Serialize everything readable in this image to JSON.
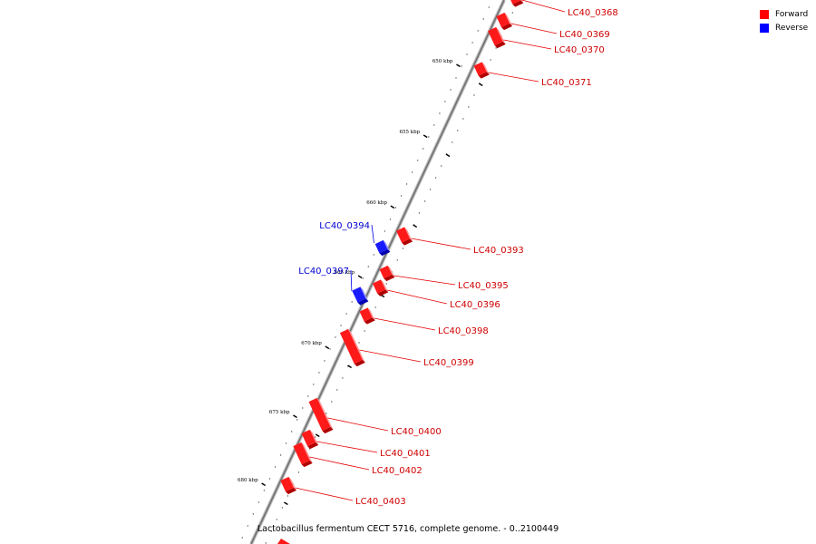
{
  "legend": {
    "forward_label": "Forward",
    "reverse_label": "Reverse",
    "forward_color": "#ff0000",
    "reverse_color": "#0000ff"
  },
  "caption": "Lactobacillus fermentum CECT 5716, complete genome. - 0..2100449",
  "ticks": [
    {
      "label": "650 kbp"
    },
    {
      "label": "655 kbp"
    },
    {
      "label": "660 kbp"
    },
    {
      "label": "665 kbp"
    },
    {
      "label": "670 kbp"
    },
    {
      "label": "675 kbp"
    },
    {
      "label": "680 kbp"
    }
  ],
  "genes": [
    {
      "name": "LC40_0368",
      "strand": "forward"
    },
    {
      "name": "LC40_0369",
      "strand": "forward"
    },
    {
      "name": "LC40_0370",
      "strand": "forward"
    },
    {
      "name": "LC40_0371",
      "strand": "forward"
    },
    {
      "name": "LC40_0393",
      "strand": "forward"
    },
    {
      "name": "LC40_0394",
      "strand": "reverse"
    },
    {
      "name": "LC40_0395",
      "strand": "forward"
    },
    {
      "name": "LC40_0396",
      "strand": "forward"
    },
    {
      "name": "LC40_0397",
      "strand": "reverse"
    },
    {
      "name": "LC40_0398",
      "strand": "forward"
    },
    {
      "name": "LC40_0399",
      "strand": "forward"
    },
    {
      "name": "LC40_0400",
      "strand": "forward"
    },
    {
      "name": "LC40_0401",
      "strand": "forward"
    },
    {
      "name": "LC40_0402",
      "strand": "forward"
    },
    {
      "name": "LC40_0403",
      "strand": "forward"
    }
  ]
}
